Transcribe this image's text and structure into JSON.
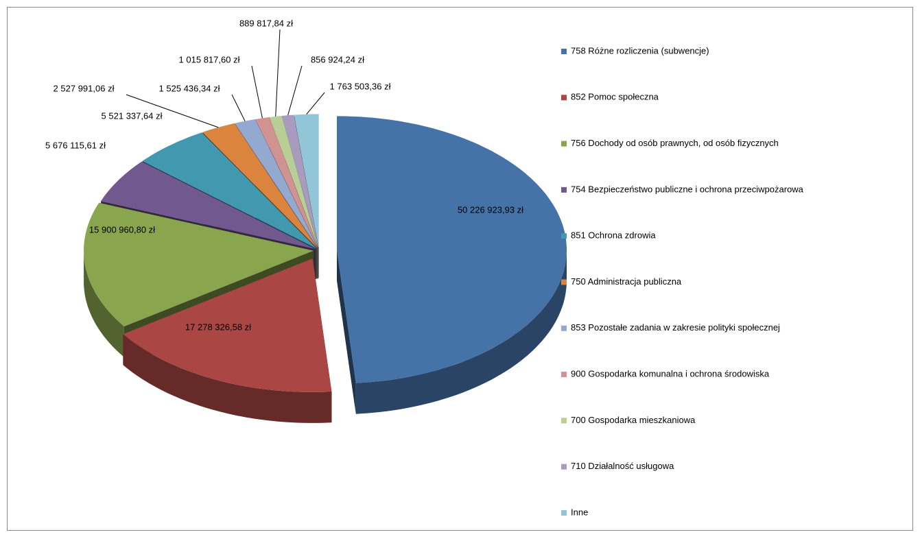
{
  "chart_data": {
    "type": "pie",
    "categories": [
      "758 Różne rozliczenia (subwencje)",
      "852 Pomoc społeczna",
      "756 Dochody od osób prawnych, od osób fizycznych",
      "754 Bezpieczeństwo publiczne i ochrona przeciwpożarowa",
      "851 Ochrona zdrowia",
      "750 Administracja publiczna",
      "853 Pozostałe zadania w zakresie polityki społecznej",
      "900 Gospodarka komunalna i ochrona środowiska",
      "700 Gospodarka mieszkaniowa",
      "710 Działalność usługowa",
      "Inne"
    ],
    "values": [
      50226923.93,
      17278326.58,
      15900960.8,
      5676115.61,
      5521337.64,
      2527991.06,
      1525436.34,
      1015817.6,
      889817.84,
      856924.24,
      1763503.36
    ],
    "value_labels": [
      "50 226 923,93 zł",
      "17 278 326,58 zł",
      "15 900 960,80 zł",
      "5 676 115,61 zł",
      "5 521 337,64 zł",
      "2 527 991,06 zł",
      "1 525 436,34 zł",
      "1 015 817,60 zł",
      "889 817,84 zł",
      "856 924,24 zł",
      "1 763 503,36 zł"
    ],
    "colors": [
      "#4572a7",
      "#aa4643",
      "#89a54e",
      "#71588f",
      "#4198af",
      "#db843d",
      "#93a9cf",
      "#d19392",
      "#b9cd96",
      "#a99bbd",
      "#92c5d8"
    ]
  }
}
